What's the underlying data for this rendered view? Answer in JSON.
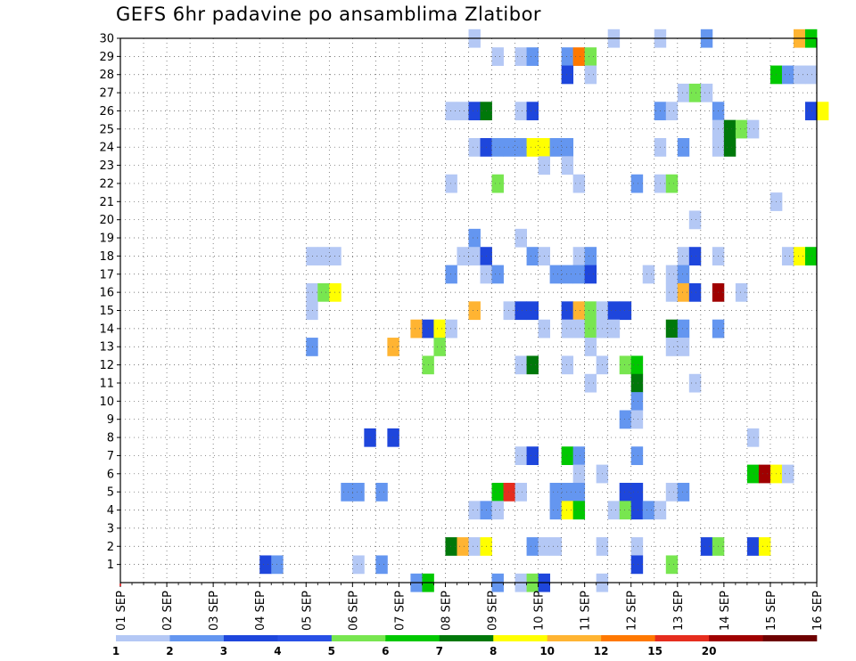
{
  "chart_data": {
    "type": "heatmap",
    "title": "GEFS 6hr padavine po ansamblima Zlatibor",
    "xlabel": "",
    "ylabel": "",
    "x_ticks": [
      "01 SEP",
      "02 SEP",
      "03 SEP",
      "04 SEP",
      "05 SEP",
      "06 SEP",
      "07 SEP",
      "08 SEP",
      "09 SEP",
      "10 SEP",
      "11 SEP",
      "12 SEP",
      "13 SEP",
      "14 SEP",
      "15 SEP",
      "16 SEP"
    ],
    "y_ticks": [
      1,
      2,
      3,
      4,
      5,
      6,
      7,
      8,
      9,
      10,
      11,
      12,
      13,
      14,
      15,
      16,
      17,
      18,
      19,
      20,
      21,
      22,
      23,
      24,
      25,
      26,
      27,
      28,
      29,
      30
    ],
    "y_range": [
      0,
      30
    ],
    "grid": true,
    "time_step_hours": 6,
    "legend": {
      "placement": "bottom",
      "labels": [
        "1",
        "2",
        "3",
        "4",
        "5",
        "6",
        "7",
        "8",
        "10",
        "12",
        "15",
        "20"
      ],
      "colors": [
        "#b4c8f5",
        "#6496f0",
        "#1e46dc",
        "#2850e6",
        "#78e650",
        "#00c800",
        "#00780a",
        "#ffff00",
        "#ffb432",
        "#ff7800",
        "#e62d1e",
        "#a00000",
        "#6e0000"
      ]
    },
    "cells": [
      [
        30,
        8.5,
        1
      ],
      [
        30,
        11.5,
        1
      ],
      [
        30,
        12.5,
        1
      ],
      [
        30,
        13.5,
        2
      ],
      [
        30,
        15.5,
        10
      ],
      [
        30,
        15.75,
        6
      ],
      [
        29,
        9,
        1
      ],
      [
        29,
        9.5,
        1
      ],
      [
        29,
        9.75,
        2
      ],
      [
        29,
        10.5,
        2
      ],
      [
        29,
        10.75,
        12
      ],
      [
        29,
        11,
        5
      ],
      [
        28,
        10.5,
        3
      ],
      [
        28,
        11,
        1
      ],
      [
        28,
        15,
        6
      ],
      [
        28,
        15.25,
        2
      ],
      [
        28,
        15.5,
        1
      ],
      [
        28,
        15.75,
        1
      ],
      [
        27,
        13,
        1
      ],
      [
        27,
        13.25,
        5
      ],
      [
        27,
        13.5,
        1
      ],
      [
        26,
        8,
        1
      ],
      [
        26,
        8.25,
        1
      ],
      [
        26,
        8.5,
        3
      ],
      [
        26,
        8.75,
        7
      ],
      [
        26,
        9.5,
        1
      ],
      [
        26,
        9.75,
        3
      ],
      [
        26,
        12.5,
        2
      ],
      [
        26,
        12.75,
        1
      ],
      [
        26,
        13.75,
        2
      ],
      [
        26,
        15.75,
        3
      ],
      [
        26,
        16,
        8
      ],
      [
        25,
        13.75,
        1
      ],
      [
        25,
        14,
        7
      ],
      [
        25,
        14.25,
        5
      ],
      [
        25,
        14.5,
        1
      ],
      [
        24,
        8.5,
        1
      ],
      [
        24,
        8.75,
        3
      ],
      [
        24,
        9,
        2
      ],
      [
        24,
        9.25,
        2
      ],
      [
        24,
        9.5,
        2
      ],
      [
        24,
        9.75,
        8
      ],
      [
        24,
        10,
        8
      ],
      [
        24,
        10.25,
        2
      ],
      [
        24,
        10.5,
        2
      ],
      [
        24,
        12.5,
        1
      ],
      [
        24,
        13,
        2
      ],
      [
        24,
        13.75,
        1
      ],
      [
        24,
        14,
        7
      ],
      [
        23,
        10,
        1
      ],
      [
        23,
        10.5,
        1
      ],
      [
        22,
        8,
        1
      ],
      [
        22,
        9,
        5
      ],
      [
        22,
        10.75,
        1
      ],
      [
        22,
        12,
        2
      ],
      [
        22,
        12.5,
        1
      ],
      [
        22,
        12.75,
        5
      ],
      [
        21,
        15,
        1
      ],
      [
        20,
        13.25,
        1
      ],
      [
        19,
        8.5,
        2
      ],
      [
        19,
        9.5,
        1
      ],
      [
        18,
        5,
        1
      ],
      [
        18,
        5.25,
        1
      ],
      [
        18,
        5.5,
        1
      ],
      [
        18,
        8.25,
        1
      ],
      [
        18,
        8.5,
        1
      ],
      [
        18,
        8.75,
        3
      ],
      [
        18,
        9.75,
        2
      ],
      [
        18,
        10,
        1
      ],
      [
        18,
        10.75,
        1
      ],
      [
        18,
        11,
        2
      ],
      [
        18,
        13,
        1
      ],
      [
        18,
        13.25,
        3
      ],
      [
        18,
        13.75,
        1
      ],
      [
        18,
        15.25,
        1
      ],
      [
        18,
        15.5,
        8
      ],
      [
        18,
        15.75,
        6
      ],
      [
        17,
        8,
        2
      ],
      [
        17,
        8.75,
        1
      ],
      [
        17,
        9,
        2
      ],
      [
        17,
        10.25,
        2
      ],
      [
        17,
        10.5,
        2
      ],
      [
        17,
        10.75,
        2
      ],
      [
        17,
        11,
        3
      ],
      [
        17,
        12.25,
        1
      ],
      [
        17,
        12.75,
        1
      ],
      [
        17,
        13,
        2
      ],
      [
        16,
        5,
        1
      ],
      [
        16,
        5.25,
        5
      ],
      [
        16,
        5.5,
        8
      ],
      [
        16,
        12.75,
        1
      ],
      [
        16,
        13,
        10
      ],
      [
        16,
        13.25,
        3
      ],
      [
        16,
        13.75,
        20
      ],
      [
        16,
        14.25,
        1
      ],
      [
        15,
        5,
        1
      ],
      [
        15,
        8.5,
        10
      ],
      [
        15,
        9.25,
        1
      ],
      [
        15,
        9.5,
        3
      ],
      [
        15,
        9.75,
        3
      ],
      [
        15,
        10.5,
        3
      ],
      [
        15,
        10.75,
        10
      ],
      [
        15,
        11,
        5
      ],
      [
        15,
        11.25,
        1
      ],
      [
        15,
        11.5,
        3
      ],
      [
        15,
        11.75,
        3
      ],
      [
        14,
        7.25,
        10
      ],
      [
        14,
        7.5,
        3
      ],
      [
        14,
        7.75,
        8
      ],
      [
        14,
        8,
        1
      ],
      [
        14,
        10,
        1
      ],
      [
        14,
        10.5,
        1
      ],
      [
        14,
        10.75,
        1
      ],
      [
        14,
        11,
        5
      ],
      [
        14,
        11.25,
        1
      ],
      [
        14,
        11.5,
        1
      ],
      [
        14,
        12.75,
        7
      ],
      [
        14,
        13,
        2
      ],
      [
        14,
        13.75,
        2
      ],
      [
        13,
        5,
        2
      ],
      [
        13,
        6.75,
        10
      ],
      [
        13,
        7.75,
        5
      ],
      [
        13,
        11,
        1
      ],
      [
        13,
        12.75,
        1
      ],
      [
        13,
        13,
        1
      ],
      [
        12,
        7.5,
        5
      ],
      [
        12,
        9.5,
        1
      ],
      [
        12,
        9.75,
        7
      ],
      [
        12,
        10.5,
        1
      ],
      [
        12,
        11.25,
        1
      ],
      [
        12,
        11.75,
        5
      ],
      [
        12,
        12,
        6
      ],
      [
        11,
        11,
        1
      ],
      [
        11,
        12,
        7
      ],
      [
        11,
        13.25,
        1
      ],
      [
        10,
        12,
        2
      ],
      [
        9,
        11.75,
        2
      ],
      [
        9,
        12,
        1
      ],
      [
        8,
        6.25,
        3
      ],
      [
        8,
        6.75,
        3
      ],
      [
        8,
        14.5,
        1
      ],
      [
        7,
        9.5,
        1
      ],
      [
        7,
        9.75,
        3
      ],
      [
        7,
        10.5,
        6
      ],
      [
        7,
        10.75,
        2
      ],
      [
        7,
        12,
        2
      ],
      [
        6,
        10.75,
        1
      ],
      [
        6,
        11.25,
        1
      ],
      [
        6,
        14.5,
        6
      ],
      [
        6,
        14.75,
        20
      ],
      [
        6,
        15,
        8
      ],
      [
        6,
        15.25,
        1
      ],
      [
        5,
        5.75,
        2
      ],
      [
        5,
        6,
        2
      ],
      [
        5,
        6.5,
        2
      ],
      [
        5,
        9,
        6
      ],
      [
        5,
        9.25,
        15
      ],
      [
        5,
        9.5,
        1
      ],
      [
        5,
        10.25,
        2
      ],
      [
        5,
        10.5,
        2
      ],
      [
        5,
        10.75,
        2
      ],
      [
        5,
        11.75,
        3
      ],
      [
        5,
        12,
        3
      ],
      [
        5,
        12.75,
        1
      ],
      [
        5,
        13,
        2
      ],
      [
        4,
        8.5,
        1
      ],
      [
        4,
        8.75,
        2
      ],
      [
        4,
        9,
        1
      ],
      [
        4,
        10.25,
        2
      ],
      [
        4,
        10.5,
        8
      ],
      [
        4,
        10.75,
        6
      ],
      [
        4,
        11.5,
        1
      ],
      [
        4,
        11.75,
        5
      ],
      [
        4,
        12,
        3
      ],
      [
        4,
        12.25,
        2
      ],
      [
        4,
        12.5,
        1
      ],
      [
        2,
        8,
        7
      ],
      [
        2,
        8.25,
        10
      ],
      [
        2,
        8.5,
        1
      ],
      [
        2,
        8.75,
        8
      ],
      [
        2,
        9.75,
        2
      ],
      [
        2,
        10,
        1
      ],
      [
        2,
        10.25,
        1
      ],
      [
        2,
        11.25,
        1
      ],
      [
        2,
        12,
        1
      ],
      [
        2,
        13.5,
        3
      ],
      [
        2,
        13.75,
        5
      ],
      [
        2,
        14.5,
        3
      ],
      [
        2,
        14.75,
        8
      ],
      [
        1,
        4,
        3
      ],
      [
        1,
        4.25,
        2
      ],
      [
        1,
        6,
        1
      ],
      [
        1,
        6.5,
        2
      ],
      [
        1,
        12,
        3
      ],
      [
        1,
        12.75,
        5
      ],
      [
        0,
        7.25,
        2
      ],
      [
        0,
        7.5,
        6
      ],
      [
        0,
        9,
        2
      ],
      [
        0,
        9.5,
        1
      ],
      [
        0,
        9.75,
        5
      ],
      [
        0,
        10,
        3
      ],
      [
        0,
        11.25,
        1
      ]
    ]
  }
}
